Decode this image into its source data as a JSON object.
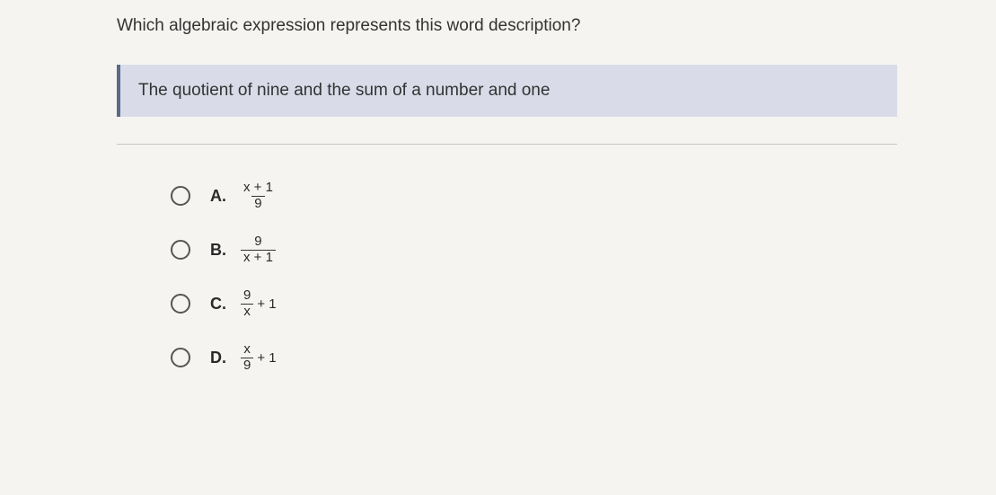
{
  "question": {
    "title": "Which algebraic expression represents this word description?",
    "description": "The quotient of nine and the sum of a number and one"
  },
  "options": [
    {
      "label": "A.",
      "numerator": "x + 1",
      "denominator": "9",
      "suffix": ""
    },
    {
      "label": "B.",
      "numerator": "9",
      "denominator": "x + 1",
      "suffix": ""
    },
    {
      "label": "C.",
      "numerator": "9",
      "denominator": "x",
      "suffix": "+ 1"
    },
    {
      "label": "D.",
      "numerator": "x",
      "denominator": "9",
      "suffix": "+ 1"
    }
  ],
  "colors": {
    "background": "#f5f4f0",
    "box_bg": "#d9dce8",
    "box_border": "#5a6a8a",
    "divider": "#c8c7c3",
    "text": "#2a2a2a"
  }
}
